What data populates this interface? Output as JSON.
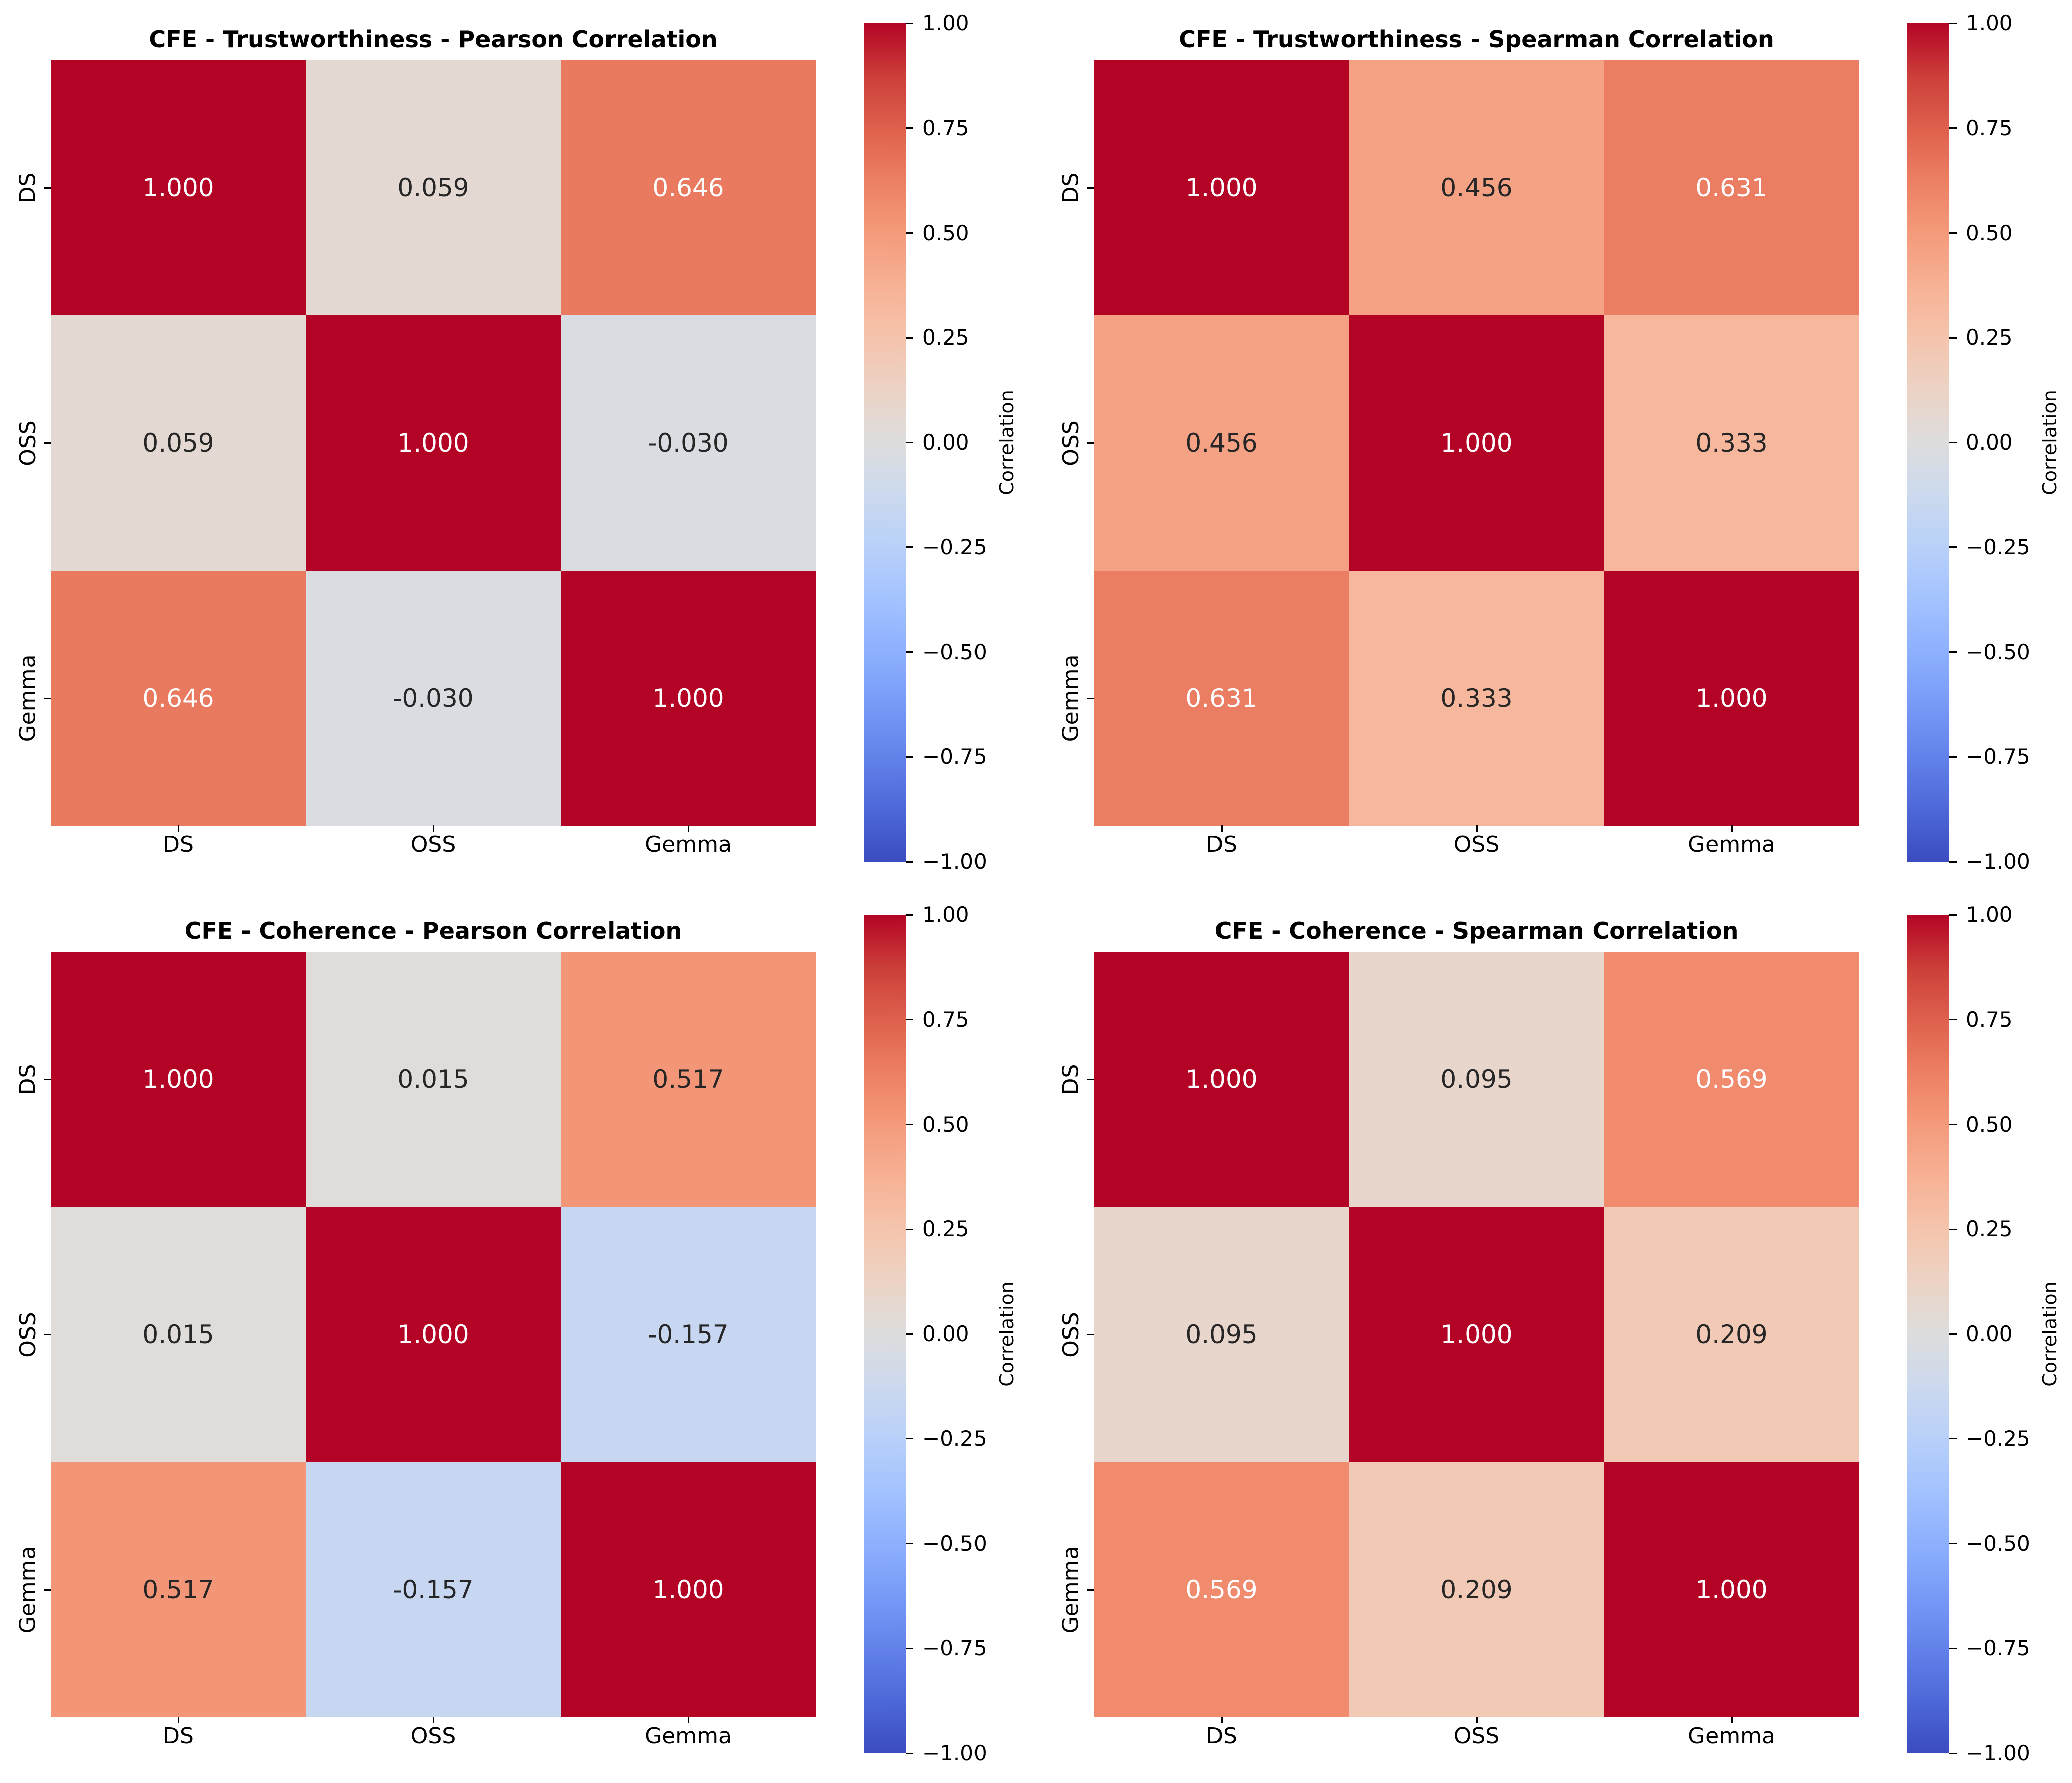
{
  "page": {
    "background": "#ffffff"
  },
  "text_colors": {
    "annotation_dark": "#262626",
    "annotation_light": "#fefefe",
    "axis": "#000000"
  },
  "colormap": {
    "name": "coolwarm",
    "stops": [
      [
        0.0,
        "#3b4cc0"
      ],
      [
        0.0625,
        "#4d68d7"
      ],
      [
        0.125,
        "#6282ea"
      ],
      [
        0.1875,
        "#779af7"
      ],
      [
        0.25,
        "#8db0fe"
      ],
      [
        0.3125,
        "#a3c2ff"
      ],
      [
        0.375,
        "#b8d0f9"
      ],
      [
        0.4375,
        "#ccd9ee"
      ],
      [
        0.5,
        "#dddddd"
      ],
      [
        0.5625,
        "#ecd3c5"
      ],
      [
        0.625,
        "#f5c4ad"
      ],
      [
        0.6875,
        "#f7b194"
      ],
      [
        0.75,
        "#f49a7b"
      ],
      [
        0.8125,
        "#ec7f63"
      ],
      [
        0.875,
        "#de604d"
      ],
      [
        0.9375,
        "#cb3e38"
      ],
      [
        1.0,
        "#b40426"
      ]
    ]
  },
  "chart_data": [
    {
      "type": "heatmap",
      "title": "CFE - Trustworthiness - Pearson Correlation",
      "x_categories": [
        "DS",
        "OSS",
        "Gemma"
      ],
      "y_categories": [
        "DS",
        "OSS",
        "Gemma"
      ],
      "values": [
        [
          1.0,
          0.059,
          0.646
        ],
        [
          0.059,
          1.0,
          -0.03
        ],
        [
          0.646,
          -0.03,
          1.0
        ]
      ],
      "value_decimals": 3,
      "vmin": -1,
      "vmax": 1,
      "colorbar_label": "Correlation",
      "colorbar_ticks": [
        1.0,
        0.75,
        0.5,
        0.25,
        0.0,
        -0.25,
        -0.5,
        -0.75,
        -1.0
      ]
    },
    {
      "type": "heatmap",
      "title": "CFE - Trustworthiness - Spearman Correlation",
      "x_categories": [
        "DS",
        "OSS",
        "Gemma"
      ],
      "y_categories": [
        "DS",
        "OSS",
        "Gemma"
      ],
      "values": [
        [
          1.0,
          0.456,
          0.631
        ],
        [
          0.456,
          1.0,
          0.333
        ],
        [
          0.631,
          0.333,
          1.0
        ]
      ],
      "value_decimals": 3,
      "vmin": -1,
      "vmax": 1,
      "colorbar_label": "Correlation",
      "colorbar_ticks": [
        1.0,
        0.75,
        0.5,
        0.25,
        0.0,
        -0.25,
        -0.5,
        -0.75,
        -1.0
      ]
    },
    {
      "type": "heatmap",
      "title": "CFE - Coherence - Pearson Correlation",
      "x_categories": [
        "DS",
        "OSS",
        "Gemma"
      ],
      "y_categories": [
        "DS",
        "OSS",
        "Gemma"
      ],
      "values": [
        [
          1.0,
          0.015,
          0.517
        ],
        [
          0.015,
          1.0,
          -0.157
        ],
        [
          0.517,
          -0.157,
          1.0
        ]
      ],
      "value_decimals": 3,
      "vmin": -1,
      "vmax": 1,
      "colorbar_label": "Correlation",
      "colorbar_ticks": [
        1.0,
        0.75,
        0.5,
        0.25,
        0.0,
        -0.25,
        -0.5,
        -0.75,
        -1.0
      ]
    },
    {
      "type": "heatmap",
      "title": "CFE - Coherence - Spearman Correlation",
      "x_categories": [
        "DS",
        "OSS",
        "Gemma"
      ],
      "y_categories": [
        "DS",
        "OSS",
        "Gemma"
      ],
      "values": [
        [
          1.0,
          0.095,
          0.569
        ],
        [
          0.095,
          1.0,
          0.209
        ],
        [
          0.569,
          0.209,
          1.0
        ]
      ],
      "value_decimals": 3,
      "vmin": -1,
      "vmax": 1,
      "colorbar_label": "Correlation",
      "colorbar_ticks": [
        1.0,
        0.75,
        0.5,
        0.25,
        0.0,
        -0.25,
        -0.5,
        -0.75,
        -1.0
      ]
    }
  ]
}
